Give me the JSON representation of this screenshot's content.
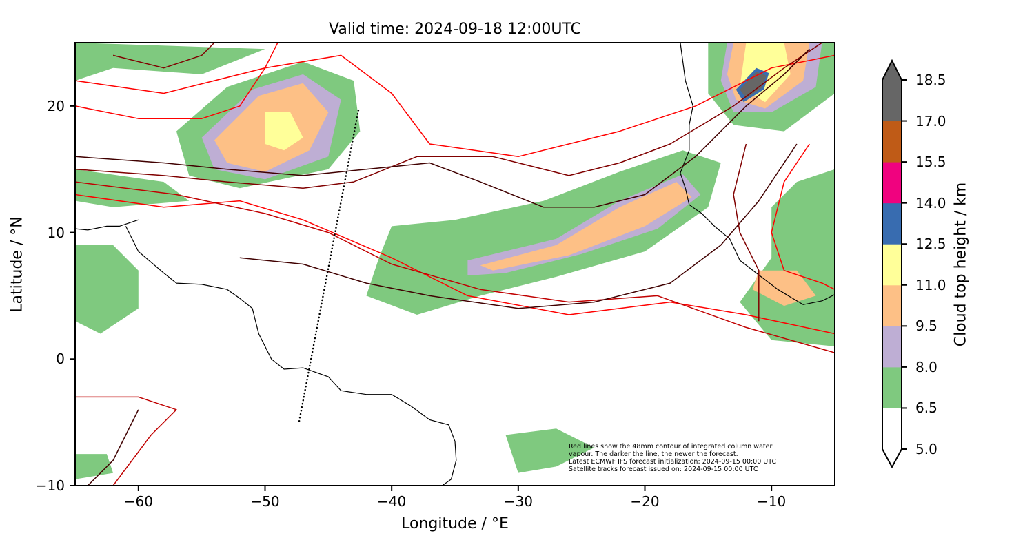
{
  "chart_data": {
    "type": "map",
    "title": "Valid time: 2024-09-18 12:00UTC",
    "xlabel": "Longitude / °E",
    "ylabel": "Latitude / °N",
    "xlim": [
      -65,
      -5
    ],
    "ylim": [
      -10,
      25
    ],
    "xticks": [
      -60,
      -50,
      -40,
      -30,
      -20,
      -10
    ],
    "xtick_labels": [
      "−60",
      "−50",
      "−40",
      "−30",
      "−20",
      "−10"
    ],
    "yticks": [
      -10,
      0,
      10,
      20
    ],
    "ytick_labels": [
      "−10",
      "0",
      "10",
      "20"
    ],
    "annotation": [
      "Red lines show the 48mm contour of integrated column water",
      "vapour. The darker the line, the newer the forecast.",
      "Latest ECMWF IFS forecast initialization: 2024-09-15 00:00 UTC",
      "Satellite tracks forecast issued on: 2024-09-15 00:00 UTC"
    ],
    "satellite_track": {
      "start": [
        -47.3,
        -4.9
      ],
      "end": [
        -42.6,
        19.8
      ]
    },
    "colorbar": {
      "label": "Cloud top height / km",
      "levels": [
        5.0,
        6.5,
        8.0,
        9.5,
        11.0,
        12.5,
        14.0,
        15.5,
        17.0,
        18.5
      ],
      "level_labels": [
        "5.0",
        "6.5",
        "8.0",
        "9.5",
        "11.0",
        "12.5",
        "14.0",
        "15.5",
        "17.0",
        "18.5"
      ],
      "colors": [
        "#ffffff",
        "#7fc97f",
        "#beaed4",
        "#fdc086",
        "#ffff99",
        "#386cb0",
        "#f0027f",
        "#bf5b17",
        "#666666"
      ],
      "extend": "both"
    },
    "contour_colors": [
      "#ff0000",
      "#c00000",
      "#800000",
      "#400000"
    ]
  }
}
